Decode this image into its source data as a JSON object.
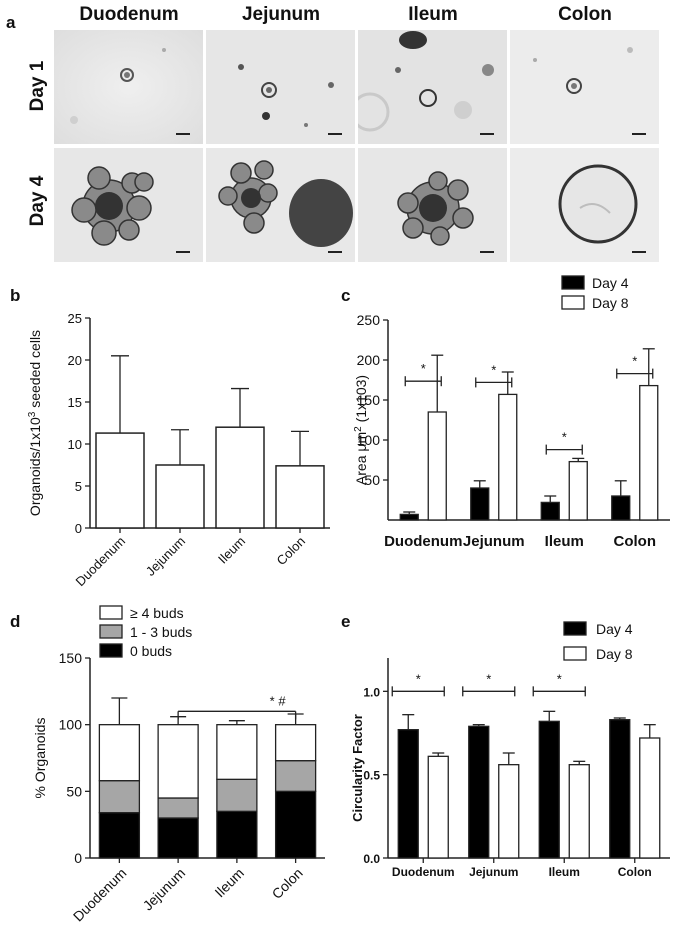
{
  "panel_a": {
    "letter": "a",
    "columns": [
      "Duodenum",
      "Jejunum",
      "Ileum",
      "Colon"
    ],
    "rows": [
      "Day 1",
      "Day 4"
    ]
  },
  "chart_data": [
    {
      "id": "b",
      "letter": "b",
      "type": "bar",
      "categories": [
        "Duodenum",
        "Jejunum",
        "Ileum",
        "Colon"
      ],
      "values": [
        11.3,
        7.5,
        12.0,
        7.4
      ],
      "errors": [
        9.2,
        4.2,
        4.6,
        4.1
      ],
      "ylabel_parts": [
        "Organoids/1x10",
        "3",
        " seeded cells"
      ],
      "ylim": [
        0,
        25
      ],
      "yticks": [
        0,
        5,
        10,
        15,
        20,
        25
      ]
    },
    {
      "id": "c",
      "letter": "c",
      "type": "bar",
      "categories": [
        "Duodenum",
        "Jejunum",
        "Ileum",
        "Colon"
      ],
      "series": [
        {
          "name": "Day 4",
          "values": [
            7,
            40,
            22,
            30
          ],
          "errors": [
            3,
            9,
            8,
            19
          ],
          "color": "#000000"
        },
        {
          "name": "Day 8",
          "values": [
            135,
            157,
            73,
            168
          ],
          "errors": [
            71,
            28,
            4,
            46
          ],
          "color": "#ffffff"
        }
      ],
      "ylabel_parts": [
        "Area μm",
        "2",
        " (1x103)"
      ],
      "ylim": [
        0,
        250
      ],
      "yticks": [
        50,
        100,
        150,
        200,
        250
      ],
      "significance": [
        "*",
        "*",
        "*",
        "*"
      ],
      "legend": "top-right"
    },
    {
      "id": "d",
      "letter": "d",
      "type": "bar",
      "stacked": true,
      "categories": [
        "Duodenum",
        "Jejunum",
        "Ileum",
        "Colon"
      ],
      "series": [
        {
          "name": "0  buds",
          "values": [
            34,
            30,
            35,
            50
          ],
          "errors": [
            6,
            3,
            3,
            3
          ],
          "color": "#000000"
        },
        {
          "name": "1 - 3 buds",
          "values": [
            24,
            15,
            24,
            23
          ],
          "errors": [
            14,
            10,
            0,
            5
          ],
          "color": "#a6a6a6"
        },
        {
          "name": "≥ 4 buds",
          "values": [
            42,
            55,
            41,
            27
          ],
          "errors": [
            20,
            6,
            3,
            8
          ],
          "color": "#ffffff"
        }
      ],
      "legend_order": [
        "≥ 4 buds",
        "1 - 3 buds",
        "0  buds"
      ],
      "ylabel": "% Organoids",
      "ylim": [
        0,
        150
      ],
      "yticks": [
        0,
        50,
        100,
        150
      ],
      "annotation": "* #",
      "legend": "top-left"
    },
    {
      "id": "e",
      "letter": "e",
      "type": "bar",
      "categories": [
        "Duodenum",
        "Jejunum",
        "Ileum",
        "Colon"
      ],
      "series": [
        {
          "name": "Day 4",
          "values": [
            0.77,
            0.79,
            0.82,
            0.83
          ],
          "errors": [
            0.09,
            0.01,
            0.06,
            0.01
          ],
          "color": "#000000"
        },
        {
          "name": "Day 8",
          "values": [
            0.61,
            0.56,
            0.56,
            0.72
          ],
          "errors": [
            0.02,
            0.07,
            0.02,
            0.08
          ],
          "color": "#ffffff"
        }
      ],
      "ylabel": "Circularity Factor",
      "ylim": [
        0,
        1.2
      ],
      "yticks": [
        "0.0",
        "0.5",
        "1.0"
      ],
      "significance": [
        "*",
        "*",
        "*",
        ""
      ],
      "legend": "top-right"
    }
  ]
}
